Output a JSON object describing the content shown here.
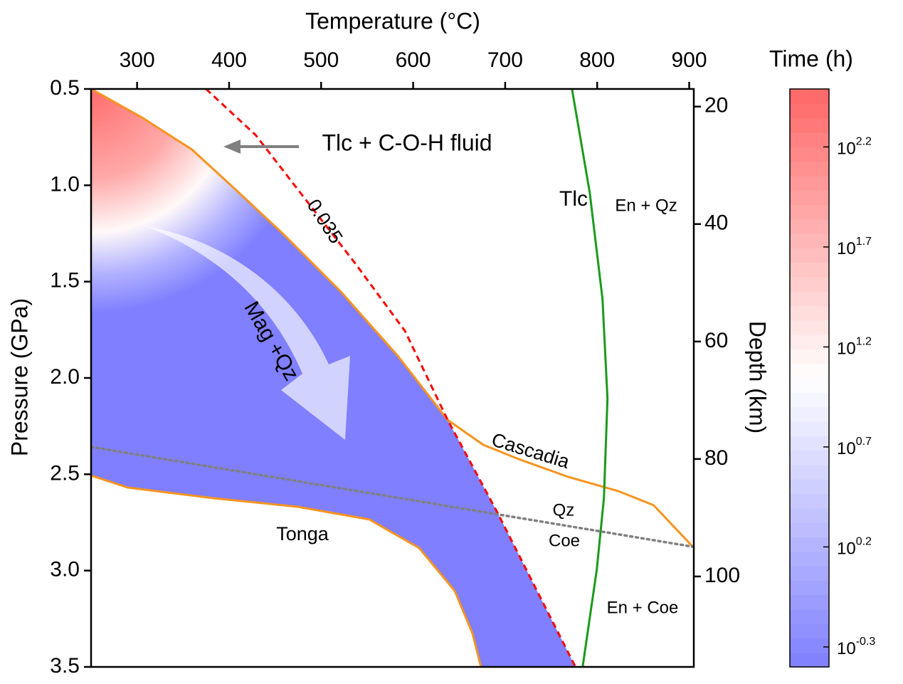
{
  "chart_data": {
    "type": "line",
    "x_label": "Temperature (°C)",
    "y_label": "Pressure (GPa)",
    "y2_label": "Depth (km)",
    "xlim": [
      250,
      905
    ],
    "xticks": [
      300,
      400,
      500,
      600,
      700,
      800,
      900
    ],
    "ylim": [
      0.5,
      3.5
    ],
    "y_inverted": true,
    "yticks": [
      0.5,
      {
        "value": 1,
        "label": "1.0"
      },
      1.5,
      {
        "value": 2,
        "label": "2.0"
      },
      2.5,
      {
        "value": 3,
        "label": "3.0"
      },
      3.5
    ],
    "y2lim": [
      17,
      115.4
    ],
    "y2ticks": [
      20,
      40,
      60,
      80,
      100
    ],
    "series": [
      {
        "name": "Cascadia",
        "color": "#f7931e",
        "style": "solid",
        "x": [
          250,
          305.4,
          359.5,
          405.8,
          459.8,
          521.6,
          583.4,
          637.5,
          676.1,
          714.7,
          768.7,
          822.8,
          861.4,
          903.9
        ],
        "values": [
          0.5,
          0.648,
          0.814,
          1.017,
          1.257,
          1.553,
          1.886,
          2.218,
          2.347,
          2.421,
          2.514,
          2.587,
          2.661,
          2.876
        ]
      },
      {
        "name": "Tonga",
        "color": "#f7931e",
        "style": "solid",
        "x": [
          250,
          290,
          382.6,
          475.3,
          552.5,
          606.6,
          645.2,
          664.5,
          673.7
        ],
        "values": [
          2.506,
          2.569,
          2.624,
          2.669,
          2.735,
          2.883,
          3.105,
          3.326,
          3.5
        ]
      },
      {
        "name": "0.035",
        "color": "#ff0000",
        "style": "dashed",
        "x": [
          374.9,
          429.0,
          483.0,
          537.1,
          591.1,
          637.5,
          691.5,
          776.4
        ],
        "values": [
          0.5,
          0.74,
          1.073,
          1.406,
          1.756,
          2.218,
          2.698,
          3.5
        ]
      },
      {
        "color": "#1a9a1a",
        "style": "solid",
        "x": [
          772.6,
          791.9,
          805.8,
          811.2,
          807.3,
          799.6,
          784.2
        ],
        "values": [
          0.5,
          1.036,
          1.59,
          2.107,
          2.624,
          2.994,
          3.5
        ]
      },
      {
        "color": "#808080",
        "style": "dotted",
        "x": [
          250,
          903.9
        ],
        "values": [
          2.358,
          2.876
        ]
      }
    ],
    "annotations": [
      {
        "text": "Tlc + C-O-H fluid",
        "color": "#ff0000"
      },
      {
        "text": "Tlc",
        "color": "#1a9a1a"
      },
      {
        "text": "En + Qz",
        "color": "#1a9a1a"
      },
      {
        "text": "En + Coe",
        "color": "#1a9a1a"
      },
      {
        "text": "Qz",
        "color": "#808080"
      },
      {
        "text": "Coe",
        "color": "#808080"
      },
      {
        "text": "Mag +Qz",
        "color": "#ff0000"
      }
    ],
    "colorbar": {
      "title": "Time (h)",
      "log": true,
      "clim": [
        0.398,
        309
      ],
      "colors": [
        "#7f7fff",
        "#ffffff",
        "#ff6666"
      ],
      "ticks": [
        {
          "value": 0.501,
          "label": "10",
          "exponent": "-0.3"
        },
        {
          "value": 1.585,
          "label": "10",
          "exponent": "0.2"
        },
        {
          "value": 5.012,
          "label": "10",
          "exponent": "0.7"
        },
        {
          "value": 15.85,
          "label": "10",
          "exponent": "1.2"
        },
        {
          "value": 50.12,
          "label": "10",
          "exponent": "1.7"
        },
        {
          "value": 158.5,
          "label": "10",
          "exponent": "2.2"
        }
      ]
    }
  }
}
